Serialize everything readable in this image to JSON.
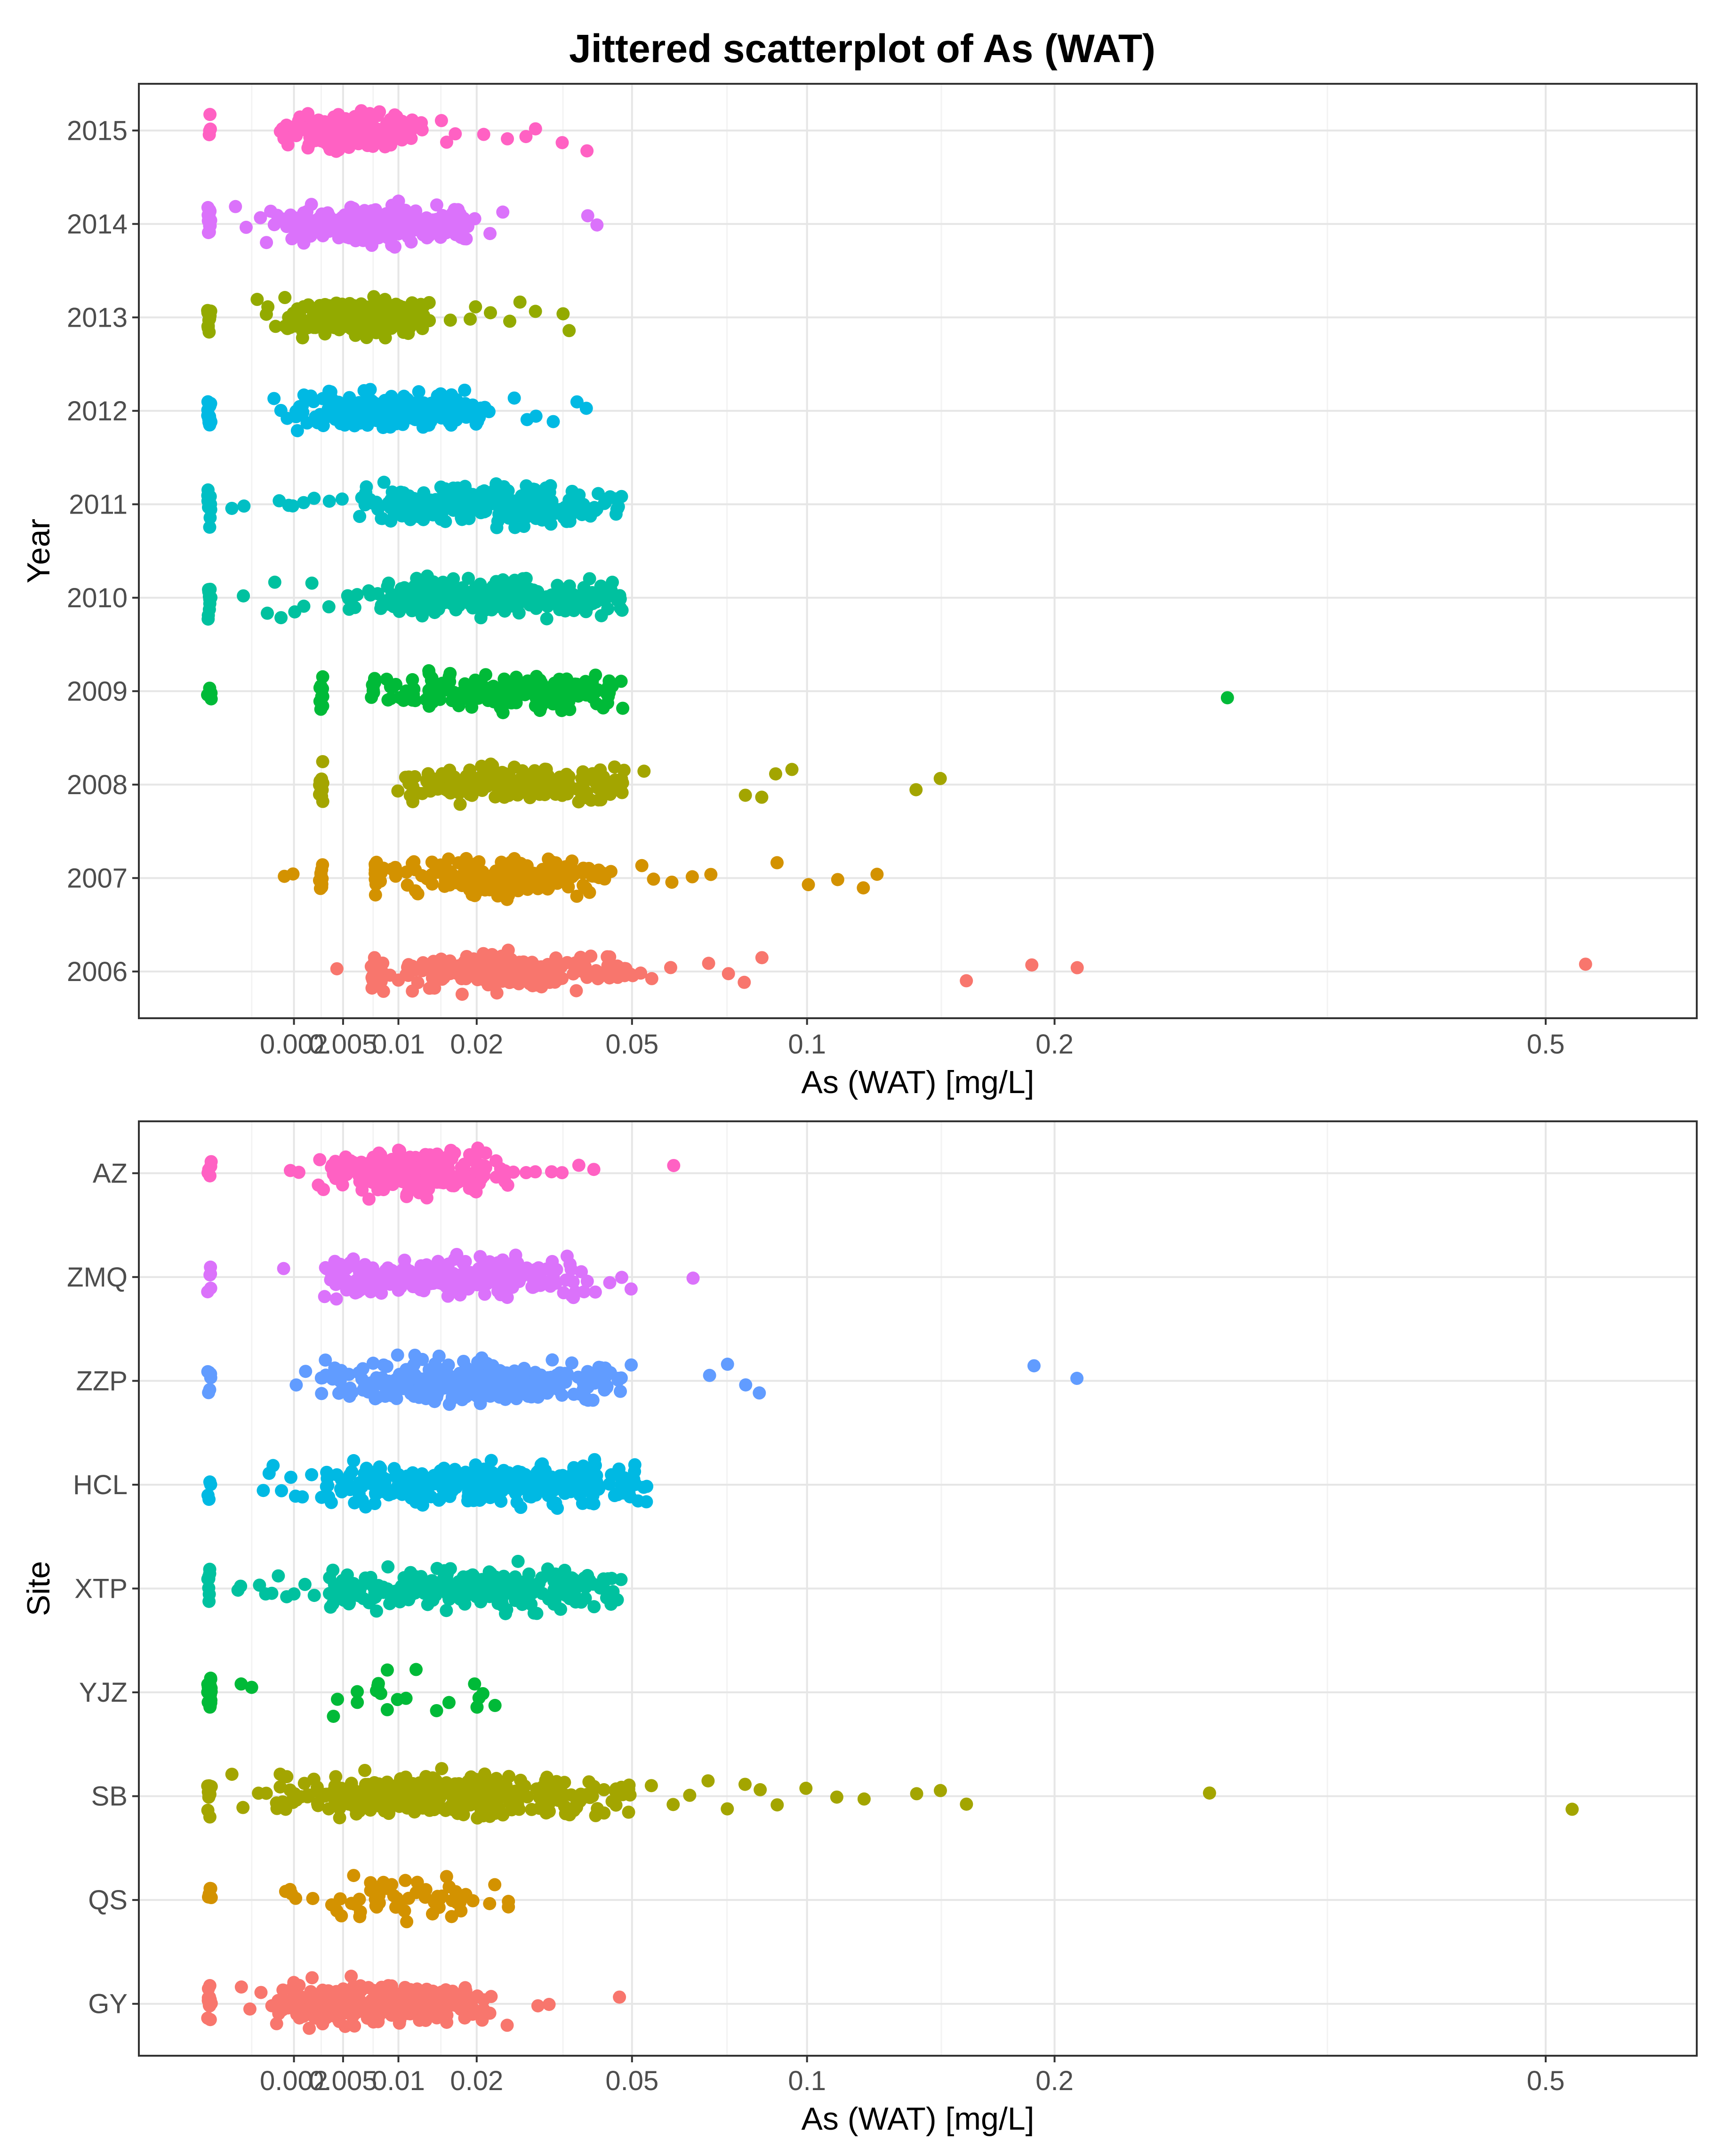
{
  "figure": {
    "title": "Jittered scatterplot of As (WAT)"
  },
  "chart_data": [
    {
      "type": "scatter",
      "panel": "top",
      "xlabel": "As (WAT) [mg/L]",
      "ylabel": "Year",
      "x_scale": "sqrt",
      "xlim": [
        0,
        0.6
      ],
      "x_ticks": [
        {
          "value": 0.002,
          "label": "0.002"
        },
        {
          "value": 0.005,
          "label": "0.005"
        },
        {
          "value": 0.01,
          "label": "0.01"
        },
        {
          "value": 0.02,
          "label": "0.02"
        },
        {
          "value": 0.05,
          "label": "0.05"
        },
        {
          "value": 0.1,
          "label": "0.1"
        },
        {
          "value": 0.2,
          "label": "0.2"
        },
        {
          "value": 0.5,
          "label": "0.5"
        }
      ],
      "categories": [
        "2015",
        "2014",
        "2013",
        "2012",
        "2011",
        "2010",
        "2009",
        "2008",
        "2007",
        "2006"
      ],
      "series": [
        {
          "name": "2015",
          "color": "#FF61C3",
          "censored_value": 0.0,
          "censored_count": 4,
          "count": 230,
          "cluster": [
            0.0014,
            0.013
          ],
          "clusterWeight": 0.85,
          "outliers": [
            0.015,
            0.016,
            0.017,
            0.021,
            0.025,
            0.028,
            0.03,
            0.035,
            0.04
          ]
        },
        {
          "name": "2014",
          "color": "#DB72FB",
          "censored_value": 0.0,
          "censored_count": 14,
          "count": 300,
          "cluster": [
            0.0012,
            0.02
          ],
          "clusterWeight": 0.85,
          "outliers": [
            0.0002,
            0.0004,
            0.0007,
            0.0009,
            0.0011,
            0.022,
            0.024,
            0.04,
            0.042
          ]
        },
        {
          "name": "2013",
          "color": "#93AA00",
          "censored_value": 0.0,
          "censored_count": 14,
          "count": 280,
          "cluster": [
            0.0016,
            0.014
          ],
          "clusterWeight": 0.8,
          "outliers": [
            0.0006,
            0.0009,
            0.001,
            0.0012,
            0.016,
            0.019,
            0.02,
            0.022,
            0.025,
            0.027,
            0.03,
            0.035,
            0.036
          ]
        },
        {
          "name": "2012",
          "color": "#00B9E3",
          "censored_value": 0.0,
          "censored_count": 14,
          "count": 280,
          "cluster": [
            0.002,
            0.022
          ],
          "clusterWeight": 0.85,
          "outliers": [
            0.0012,
            0.0014,
            0.0017,
            0.026,
            0.028,
            0.03,
            0.033,
            0.038,
            0.04
          ]
        },
        {
          "name": "2011",
          "color": "#00BFC4",
          "censored_value": 0.0,
          "censored_count": 14,
          "count": 320,
          "cluster": [
            0.006,
            0.05
          ],
          "clusterWeight": 0.8,
          "outliers": [
            0.00015,
            0.0003,
            0.0013,
            0.0017,
            0.002,
            0.0025,
            0.003,
            0.004,
            0.005
          ]
        },
        {
          "name": "2010",
          "color": "#00C19F",
          "censored_value": 0.0,
          "censored_count": 12,
          "count": 320,
          "cluster": [
            0.005,
            0.048
          ],
          "clusterWeight": 0.8,
          "outliers": [
            0.0003,
            0.0009,
            0.0012,
            0.0015,
            0.002,
            0.0025,
            0.003,
            0.004
          ]
        },
        {
          "name": "2009",
          "color": "#00BA38",
          "censored_value": 0.0,
          "censored_count": 4,
          "count": 240,
          "cluster": [
            0.0085,
            0.05
          ],
          "clusterWeight": 0.85,
          "secondary_columns": [
            0.0035,
            0.0075
          ],
          "outliers": [
            0.29
          ]
        },
        {
          "name": "2008",
          "color": "#A3A500",
          "censored_value": 0.0035,
          "censored_count": 12,
          "count": 230,
          "cluster": [
            0.01,
            0.05
          ],
          "clusterWeight": 0.85,
          "outliers": [
            0.053,
            0.08,
            0.085,
            0.09,
            0.095,
            0.14,
            0.15
          ]
        },
        {
          "name": "2007",
          "color": "#D39200",
          "censored_value": 0.0035,
          "censored_count": 12,
          "count": 240,
          "cluster": [
            0.0078,
            0.046
          ],
          "clusterWeight": 0.8,
          "secondary_columns": [
            0.0078
          ],
          "outliers": [
            0.0015,
            0.002,
            0.052,
            0.055,
            0.06,
            0.065,
            0.07,
            0.09,
            0.1,
            0.11,
            0.12,
            0.125
          ]
        },
        {
          "name": "2006",
          "color": "#F8766D",
          "censored_value": 0.0075,
          "censored_count": 10,
          "count": 230,
          "cluster": [
            0.0075,
            0.05
          ],
          "clusterWeight": 0.85,
          "outliers": [
            0.0045,
            0.052,
            0.055,
            0.06,
            0.07,
            0.075,
            0.08,
            0.085,
            0.16,
            0.19,
            0.21,
            0.53
          ]
        }
      ]
    },
    {
      "type": "scatter",
      "panel": "bottom",
      "xlabel": "As (WAT) [mg/L]",
      "ylabel": "Site",
      "x_scale": "sqrt",
      "xlim": [
        0,
        0.6
      ],
      "x_ticks": [
        {
          "value": 0.002,
          "label": "0.002"
        },
        {
          "value": 0.005,
          "label": "0.005"
        },
        {
          "value": 0.01,
          "label": "0.01"
        },
        {
          "value": 0.02,
          "label": "0.02"
        },
        {
          "value": 0.05,
          "label": "0.05"
        },
        {
          "value": 0.1,
          "label": "0.1"
        },
        {
          "value": 0.2,
          "label": "0.2"
        },
        {
          "value": 0.5,
          "label": "0.5"
        }
      ],
      "categories": [
        "AZ",
        "ZMQ",
        "ZZP",
        "HCL",
        "XTP",
        "YJZ",
        "SB",
        "QS",
        "GY"
      ],
      "series": [
        {
          "name": "AZ",
          "color": "#FF61C3",
          "censored_value": 0.0,
          "censored_count": 5,
          "count": 280,
          "cluster": [
            0.003,
            0.025
          ],
          "clusterWeight": 0.85,
          "outliers": [
            0.0019,
            0.0022,
            0.026,
            0.028,
            0.03,
            0.033,
            0.035,
            0.038,
            0.041,
            0.06
          ]
        },
        {
          "name": "ZMQ",
          "color": "#DB72FB",
          "censored_value": 0.0,
          "censored_count": 5,
          "count": 300,
          "cluster": [
            0.0035,
            0.04
          ],
          "clusterWeight": 0.85,
          "outliers": [
            0.0015,
            0.042,
            0.045,
            0.048,
            0.05,
            0.065
          ]
        },
        {
          "name": "ZZP",
          "color": "#619CFF",
          "censored_value": 0.0,
          "censored_count": 6,
          "count": 360,
          "cluster": [
            0.0035,
            0.048
          ],
          "clusterWeight": 0.85,
          "outliers": [
            0.0021,
            0.0025,
            0.05,
            0.07,
            0.075,
            0.08,
            0.085,
            0.19,
            0.21
          ]
        },
        {
          "name": "HCL",
          "color": "#00B9E3",
          "censored_value": 0.0,
          "censored_count": 4,
          "count": 360,
          "cluster": [
            0.0035,
            0.054
          ],
          "clusterWeight": 0.85,
          "outliers": [
            0.0008,
            0.001,
            0.0012,
            0.0015,
            0.0018,
            0.002,
            0.0025,
            0.003
          ]
        },
        {
          "name": "XTP",
          "color": "#00C19F",
          "censored_value": 0.0,
          "censored_count": 8,
          "count": 360,
          "cluster": [
            0.004,
            0.048
          ],
          "clusterWeight": 0.85,
          "outliers": [
            0.0002,
            0.0003,
            0.0007,
            0.0009,
            0.0011,
            0.0014,
            0.0017,
            0.002,
            0.0025,
            0.003
          ]
        },
        {
          "name": "YJZ",
          "color": "#00BA38",
          "censored_value": 0.0,
          "censored_count": 24,
          "count": 40,
          "cluster": [
            0.0035,
            0.023
          ],
          "clusterWeight": 0.3,
          "outliers": [
            0.0003,
            0.0005,
            0.0045,
            0.006,
            0.008,
            0.01,
            0.012,
            0.02,
            0.021,
            0.023
          ]
        },
        {
          "name": "SB",
          "color": "#A3A500",
          "censored_value": 0.0,
          "censored_count": 10,
          "count": 430,
          "cluster": [
            0.0012,
            0.05
          ],
          "clusterWeight": 0.85,
          "outliers": [
            0.00015,
            0.0003,
            0.0007,
            0.0009,
            0.055,
            0.06,
            0.065,
            0.07,
            0.075,
            0.08,
            0.085,
            0.09,
            0.1,
            0.11,
            0.12,
            0.14,
            0.15,
            0.16,
            0.28,
            0.52
          ]
        },
        {
          "name": "QS",
          "color": "#D39200",
          "censored_value": 0.0,
          "censored_count": 5,
          "count": 70,
          "cluster": [
            0.0017,
            0.025
          ],
          "clusterWeight": 0.8,
          "outliers": [
            0.0016,
            0.0018,
            0.022,
            0.025
          ]
        },
        {
          "name": "GY",
          "color": "#F8766D",
          "censored_value": 0.0,
          "censored_count": 12,
          "count": 360,
          "cluster": [
            0.001,
            0.022
          ],
          "clusterWeight": 0.85,
          "outliers": [
            0.0003,
            0.0005,
            0.0007,
            0.022,
            0.025,
            0.03,
            0.032,
            0.047
          ]
        }
      ]
    }
  ]
}
